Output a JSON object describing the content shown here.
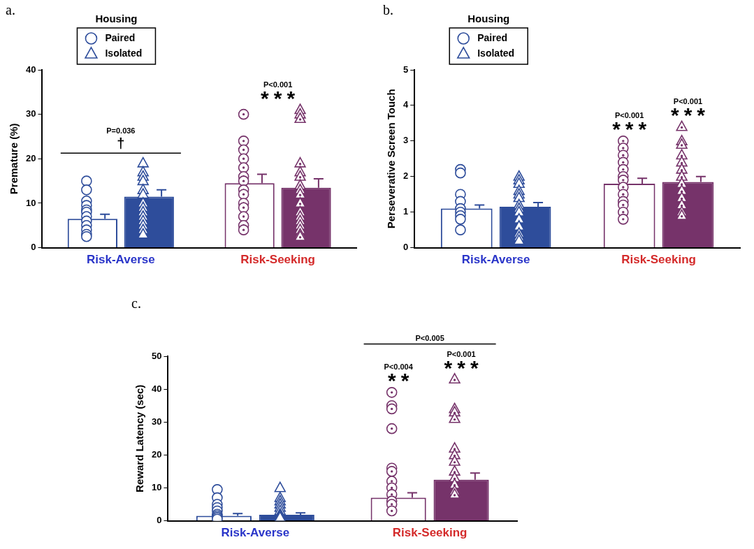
{
  "chart_data": [
    {
      "type": "bar",
      "title": "a.",
      "y_label": "Premature (%)",
      "categories": [
        "Risk-Averse",
        "Risk-Seeking"
      ],
      "series": [
        {
          "name": "Paired",
          "marker": "circle",
          "colors": [
            "#2e4d9b",
            "#76336a"
          ],
          "values": [
            6.5,
            14.5
          ],
          "errors": [
            1,
            2
          ],
          "points": [
            [
              15,
              13,
              10.5,
              9.5,
              8.5,
              8,
              7,
              6,
              5,
              4,
              3,
              2.5
            ],
            [
              30,
              24,
              22,
              20,
              18,
              16,
              15,
              13,
              12,
              10,
              9,
              7,
              5,
              4
            ]
          ]
        },
        {
          "name": "Isolated",
          "marker": "triangle",
          "colors": [
            "#2e4d9b",
            "#76336a"
          ],
          "values": [
            11.5,
            13.5
          ],
          "errors": [
            1.5,
            2
          ],
          "points": [
            [
              19,
              17,
              16,
              15,
              13,
              12,
              10,
              9,
              8,
              7,
              6,
              5,
              4,
              3
            ],
            [
              31,
              30,
              29,
              19,
              17,
              16,
              14,
              13,
              12,
              10,
              8,
              7,
              6,
              5,
              4,
              3,
              2.5
            ]
          ]
        }
      ],
      "ylim": [
        0,
        40
      ],
      "yticks": [
        0,
        10,
        20,
        30,
        40
      ],
      "grid": false,
      "legend": "top-left",
      "legend_title": "Housing",
      "annotations": [
        {
          "text": "P=0.036",
          "symbol": "†",
          "category": "Risk-Averse",
          "line_style": "solid"
        },
        {
          "text": "P<0.001",
          "symbol": "***",
          "category": "Risk-Seeking"
        }
      ]
    },
    {
      "type": "bar",
      "title": "b.",
      "y_label": "Perseverative Screen Touch",
      "categories": [
        "Risk-Averse",
        "Risk-Seeking"
      ],
      "series": [
        {
          "name": "Paired",
          "marker": "circle",
          "colors": [
            "#2e4d9b",
            "#76336a"
          ],
          "values": [
            1.1,
            1.8
          ],
          "errors": [
            0.1,
            0.15
          ],
          "points": [
            [
              2.2,
              2.1,
              1.5,
              1.3,
              1.1,
              1.0,
              0.9,
              0.8,
              0.5
            ],
            [
              3.0,
              2.8,
              2.6,
              2.4,
              2.2,
              2.0,
              1.9,
              1.7,
              1.5,
              1.3,
              1.2,
              1.0,
              0.8
            ]
          ]
        },
        {
          "name": "Isolated",
          "marker": "triangle",
          "colors": [
            "#2e4d9b",
            "#76336a"
          ],
          "values": [
            1.15,
            1.85
          ],
          "errors": [
            0.12,
            0.15
          ],
          "points": [
            [
              2.0,
              1.9,
              1.8,
              1.6,
              1.5,
              1.4,
              1.2,
              1.1,
              1.0,
              0.8,
              0.6,
              0.4,
              0.3,
              0.2
            ],
            [
              3.4,
              3.0,
              2.9,
              2.6,
              2.4,
              2.2,
              2.0,
              1.8,
              1.6,
              1.4,
              1.2,
              1.0,
              0.9
            ]
          ]
        }
      ],
      "ylim": [
        0,
        5
      ],
      "yticks": [
        0,
        1,
        2,
        3,
        4,
        5
      ],
      "grid": false,
      "legend": "top-left",
      "legend_title": "Housing",
      "annotations": [
        {
          "text": "P<0.001",
          "symbol": "***",
          "category": "Risk-Seeking",
          "series": "Paired"
        },
        {
          "text": "P<0.001",
          "symbol": "***",
          "category": "Risk-Seeking",
          "series": "Isolated"
        }
      ]
    },
    {
      "type": "bar",
      "title": "c.",
      "y_label": "Reward Latency (sec)",
      "categories": [
        "Risk-Averse",
        "Risk-Seeking"
      ],
      "series": [
        {
          "name": "Paired",
          "marker": "circle",
          "colors": [
            "#2e4d9b",
            "#76336a"
          ],
          "values": [
            1.5,
            7
          ],
          "errors": [
            0.7,
            1.5
          ],
          "points": [
            [
              9.5,
              7,
              5,
              4,
              3,
              2,
              1.5,
              1,
              0.5
            ],
            [
              39,
              35,
              34,
              28,
              16,
              15,
              12,
              10,
              8,
              6,
              5,
              3
            ]
          ]
        },
        {
          "name": "Isolated",
          "marker": "triangle",
          "colors": [
            "#2e4d9b",
            "#76336a"
          ],
          "values": [
            1.8,
            12.5
          ],
          "errors": [
            0.6,
            2
          ],
          "points": [
            [
              10,
              7,
              6,
              5,
              4,
              3,
              2,
              1.5,
              1
            ],
            [
              43,
              34,
              33,
              31,
              22,
              20,
              18,
              15,
              13,
              11,
              9,
              8
            ]
          ]
        }
      ],
      "ylim": [
        0,
        50
      ],
      "yticks": [
        0,
        10,
        20,
        30,
        40,
        50
      ],
      "grid": false,
      "annotations": [
        {
          "text": "P<0.004",
          "symbol": "**",
          "category": "Risk-Seeking",
          "series": "Paired"
        },
        {
          "text": "P<0.001",
          "symbol": "***",
          "category": "Risk-Seeking",
          "series": "Isolated"
        },
        {
          "text": "P<0.005",
          "category": "Risk-Seeking",
          "line_style": "solid"
        }
      ]
    }
  ]
}
